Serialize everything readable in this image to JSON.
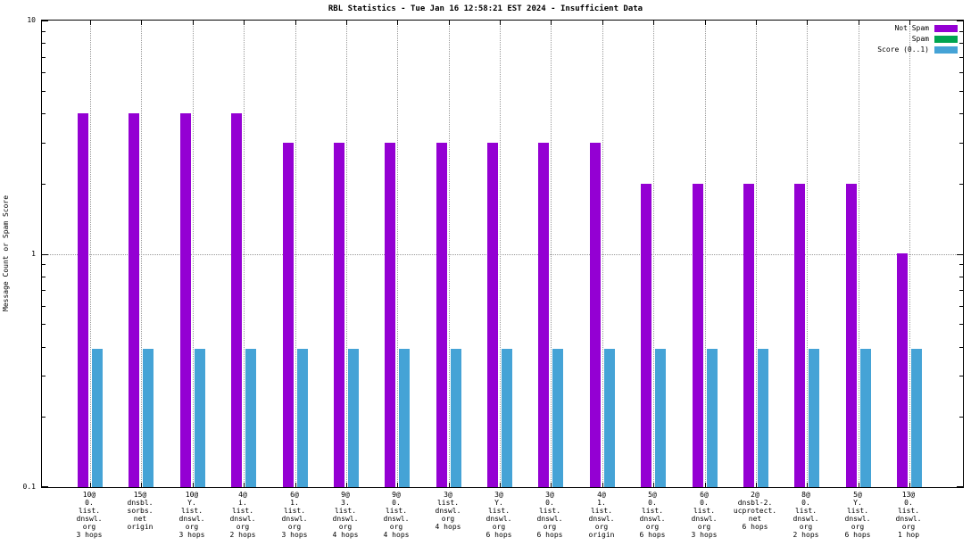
{
  "title": "RBL Statistics - Tue Jan 16 12:58:21 EST 2024 - Insufficient Data",
  "ylabel": "Message Count or Spam Score",
  "colors": {
    "not_spam": "#9400d3",
    "spam": "#00a550",
    "score": "#45a3d6",
    "grid": "#9a9a9a"
  },
  "legend": {
    "position": "top-right",
    "entries": [
      {
        "label": "Not Spam",
        "color": "#9400d3"
      },
      {
        "label": "Spam",
        "color": "#00a550"
      },
      {
        "label": "Score (0..1)",
        "color": "#45a3d6"
      }
    ]
  },
  "chart_data": {
    "type": "bar",
    "scale": "log",
    "ylim": [
      0.1,
      10
    ],
    "y_ticks": [
      0.1,
      1,
      10
    ],
    "grid": true,
    "xlabel": "",
    "ylabel": "Message Count or Spam Score",
    "categories": [
      [
        "10@",
        "0.",
        "list.",
        "dnswl.",
        "org",
        "3 hops"
      ],
      [
        "15@",
        "dnsbl.",
        "sorbs.",
        "net",
        "origin"
      ],
      [
        "10@",
        "Y.",
        "list.",
        "dnswl.",
        "org",
        "3 hops"
      ],
      [
        "4@",
        "i.",
        "list.",
        "dnswl.",
        "org",
        "2 hops"
      ],
      [
        "6@",
        "1.",
        "list.",
        "dnswl.",
        "org",
        "3 hops"
      ],
      [
        "9@",
        "3.",
        "list.",
        "dnswl.",
        "org",
        "4 hops"
      ],
      [
        "9@",
        "0.",
        "list.",
        "dnswl.",
        "org",
        "4 hops"
      ],
      [
        "3@",
        "list.",
        "dnswl.",
        "org",
        "4 hops"
      ],
      [
        "3@",
        "Y.",
        "list.",
        "dnswl.",
        "org",
        "6 hops"
      ],
      [
        "3@",
        "0.",
        "list.",
        "dnswl.",
        "org",
        "6 hops"
      ],
      [
        "4@",
        "1.",
        "list.",
        "dnswl.",
        "org",
        "origin"
      ],
      [
        "5@",
        "0.",
        "list.",
        "dnswl.",
        "org",
        "6 hops"
      ],
      [
        "6@",
        "0.",
        "list.",
        "dnswl.",
        "org",
        "3 hops"
      ],
      [
        "2@",
        "dnsbl-2.",
        "ucprotect.",
        "net",
        "6 hops"
      ],
      [
        "8@",
        "0.",
        "list.",
        "dnswl.",
        "org",
        "2 hops"
      ],
      [
        "5@",
        "Y.",
        "list.",
        "dnswl.",
        "org",
        "6 hops"
      ],
      [
        "13@",
        "0.",
        "list.",
        "dnswl.",
        "org",
        "1 hop"
      ]
    ],
    "series": [
      {
        "name": "Not Spam",
        "color": "#9400d3",
        "values": [
          4,
          4,
          4,
          4,
          3,
          3,
          3,
          3,
          3,
          3,
          3,
          2,
          2,
          2,
          2,
          2,
          1
        ]
      },
      {
        "name": "Spam",
        "color": "#00a550",
        "values": [
          0,
          0,
          0,
          0,
          0,
          0,
          0,
          0,
          0,
          0,
          0,
          0,
          0,
          0,
          0,
          0,
          0
        ]
      },
      {
        "name": "Score (0..1)",
        "color": "#45a3d6",
        "values": [
          0.39,
          0.39,
          0.39,
          0.39,
          0.39,
          0.39,
          0.39,
          0.39,
          0.39,
          0.39,
          0.39,
          0.39,
          0.39,
          0.39,
          0.39,
          0.39,
          0.39
        ]
      }
    ]
  }
}
